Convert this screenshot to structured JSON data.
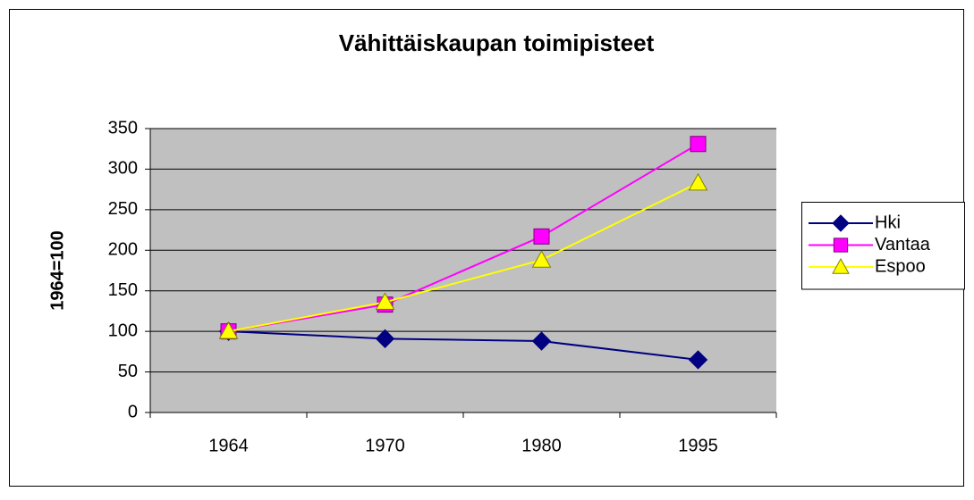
{
  "chart_data": {
    "type": "line",
    "title": "Vähittäiskaupan toimipisteet",
    "y_label": "1964=100",
    "categories": [
      "1964",
      "1970",
      "1980",
      "1995"
    ],
    "series": [
      {
        "name": "Hki",
        "color": "#000080",
        "marker": "diamond",
        "values": [
          100,
          91,
          88,
          65
        ]
      },
      {
        "name": "Vantaa",
        "color": "#ff00ff",
        "marker": "square",
        "values": [
          100,
          133,
          217,
          331
        ]
      },
      {
        "name": "Espoo",
        "color": "#ffff00",
        "marker": "triangle",
        "values": [
          100,
          136,
          188,
          283
        ]
      }
    ],
    "ylim": [
      0,
      350
    ],
    "yticks": [
      0,
      50,
      100,
      150,
      200,
      250,
      300,
      350
    ],
    "grid": true,
    "legend": "right"
  }
}
